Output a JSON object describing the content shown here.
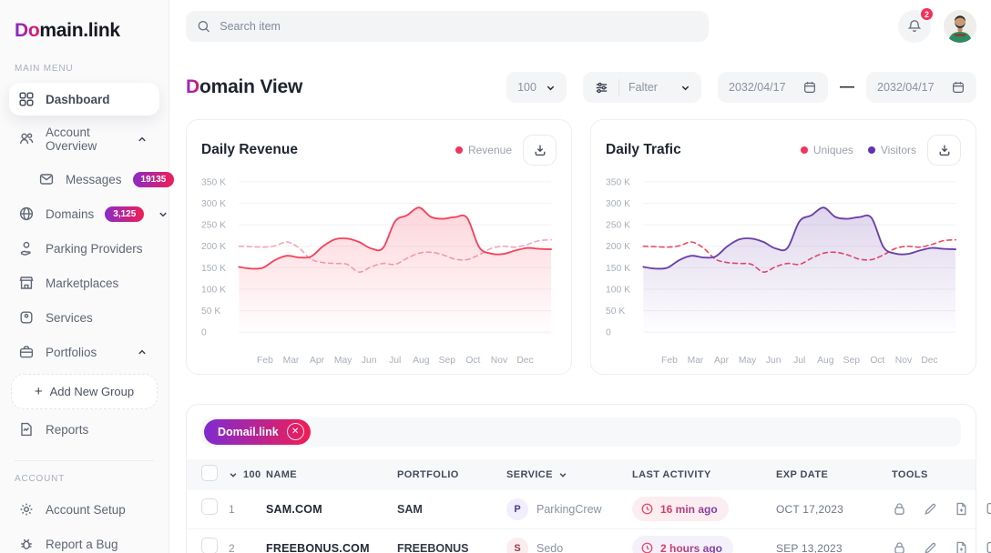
{
  "app": {
    "logo_accent": "Do",
    "logo_rest": "main.link"
  },
  "topbar": {
    "search_placeholder": "Search item",
    "notification_count": "2"
  },
  "sidebar": {
    "main_menu_label": "MAIN MENU",
    "account_label": "ACCOUNT",
    "dashboard": "Dashboard",
    "account_overview": "Account Overview",
    "messages": "Messages",
    "messages_badge": "19135",
    "domains": "Domains",
    "domains_badge": "3,125",
    "parking_providers": "Parking Providers",
    "marketplaces": "Marketplaces",
    "services": "Services",
    "portfolios": "Portfolios",
    "add_new_group": "Add New Group",
    "add_new_group_plus": "+",
    "reports": "Reports",
    "account_setup": "Account Setup",
    "report_a_bug": "Report a Bug"
  },
  "header": {
    "title_accent": "D",
    "title_rest": "omain View",
    "page_size": "100",
    "filter_label": "Falter",
    "date_from": "2032/04/17",
    "date_separator": "—",
    "date_to": "2032/04/17"
  },
  "chart_data": [
    {
      "type": "line",
      "title": "Daily Revenue",
      "x_labels": [
        "Feb",
        "Mar",
        "Apr",
        "May",
        "Jun",
        "Jul",
        "Aug",
        "Sep",
        "Oct",
        "Nov",
        "Dec"
      ],
      "y_ticks": [
        "350 K",
        "300 K",
        "250 K",
        "200 K",
        "150 K",
        "100 K",
        "50 K",
        "0"
      ],
      "ylim": [
        0,
        350
      ],
      "unit": "K",
      "grid": true,
      "legend": [
        {
          "name": "Revenue",
          "color": "#F2355C"
        }
      ],
      "series": [
        {
          "name": "Revenue",
          "style": "solid",
          "color": "#F4445E",
          "fill": true,
          "values": [
            152,
            148,
            150,
            168,
            178,
            174,
            176,
            200,
            216,
            218,
            210,
            195,
            196,
            258,
            272,
            290,
            268,
            264,
            268,
            266,
            198,
            183,
            182,
            190,
            196,
            194,
            193
          ]
        },
        {
          "name": "revenue-dashed",
          "style": "dashed",
          "color": "#F5A3B7",
          "fill": false,
          "values": [
            200,
            199,
            198,
            201,
            210,
            196,
            170,
            162,
            160,
            158,
            140,
            152,
            160,
            158,
            172,
            184,
            186,
            180,
            170,
            169,
            180,
            195,
            200,
            198,
            204,
            213,
            215
          ]
        }
      ]
    },
    {
      "type": "line",
      "title": "Daily Trafic",
      "x_labels": [
        "Feb",
        "Mar",
        "Apr",
        "May",
        "Jun",
        "Jul",
        "Aug",
        "Sep",
        "Oct",
        "Nov",
        "Dec"
      ],
      "y_ticks": [
        "350 K",
        "300 K",
        "250 K",
        "200 K",
        "150 K",
        "100 K",
        "50 K",
        "0"
      ],
      "ylim": [
        0,
        350
      ],
      "unit": "K",
      "grid": true,
      "legend": [
        {
          "name": "Uniques",
          "color": "#F2355C"
        },
        {
          "name": "Visitors",
          "color": "#6133B4"
        }
      ],
      "series": [
        {
          "name": "Visitors",
          "style": "solid",
          "color": "#6B40A8",
          "fill": true,
          "values": [
            152,
            148,
            150,
            168,
            178,
            174,
            176,
            200,
            216,
            218,
            210,
            195,
            196,
            258,
            272,
            290,
            268,
            264,
            268,
            266,
            198,
            183,
            182,
            190,
            196,
            194,
            193
          ]
        },
        {
          "name": "Uniques",
          "style": "dashed",
          "color": "#F2455F",
          "fill": false,
          "values": [
            200,
            199,
            198,
            201,
            210,
            196,
            170,
            162,
            160,
            158,
            140,
            152,
            160,
            158,
            172,
            184,
            186,
            180,
            170,
            169,
            180,
            195,
            200,
            198,
            204,
            213,
            215
          ]
        }
      ]
    }
  ],
  "table": {
    "chip_label": "Domail.link",
    "columns": {
      "count": "100",
      "name": "NAME",
      "portfolio": "PORTFOLIO",
      "service": "SERVICE",
      "last_activity": "LAST ACTIVITY",
      "exp_date": "EXP DATE",
      "tools": "TOOLS"
    },
    "rows": [
      {
        "num": "1",
        "name": "SAM.COM",
        "portfolio": "SAM",
        "service_initial": "P",
        "service_name": "ParkingCrew",
        "last_activity": "16 min ago",
        "exp_date": "OCT 17,2023",
        "activity_bg": "#FCEDF1"
      },
      {
        "num": "2",
        "name": "FREEBONUS.COM",
        "portfolio": "FREEBONUS",
        "service_initial": "S",
        "service_name": "Sedo",
        "last_activity": "2 hours ago",
        "exp_date": "SEP 13,2023",
        "activity_bg": "#F5F1FB"
      }
    ]
  },
  "colors": {
    "accent_gradient_start": "#7F2BD0",
    "accent_gradient_end": "#F01E55",
    "revenue_line": "#F4445E",
    "revenue_dashed": "#F5A3B7",
    "uniques_line": "#F2455F",
    "visitors_line": "#6B40A8",
    "notification_badge": "#F2325B",
    "sidebar_bg": "#FAFAFB",
    "control_bg": "#F4F5F7"
  }
}
